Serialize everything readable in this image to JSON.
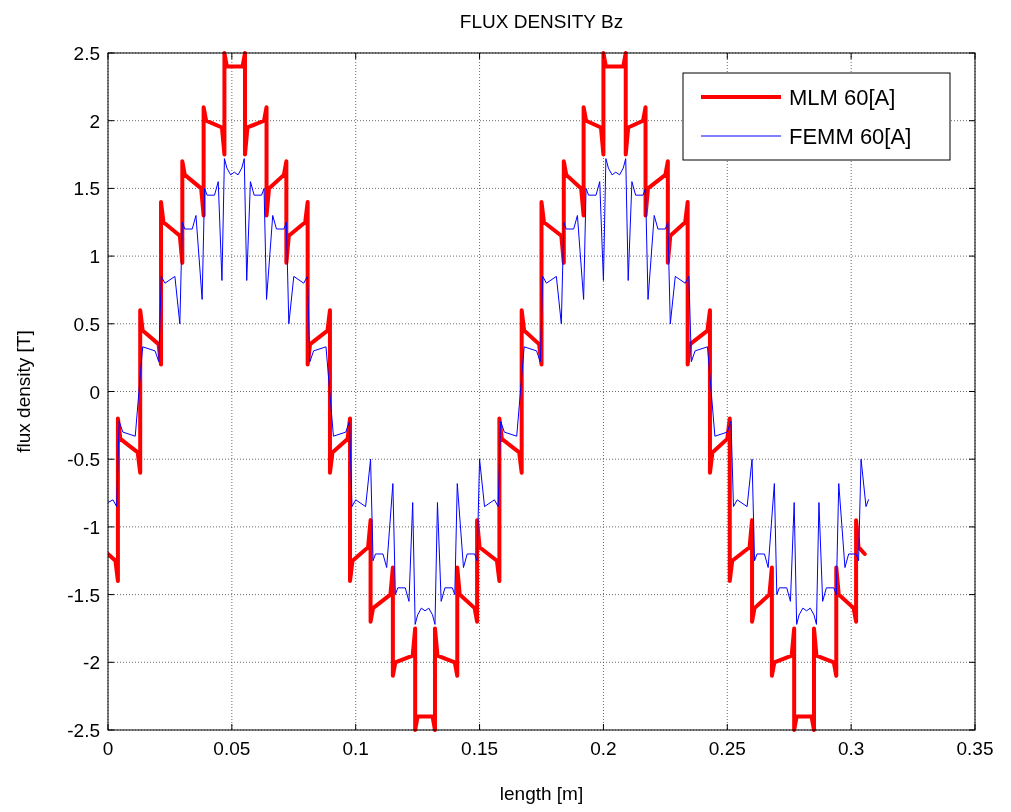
{
  "chart_data": {
    "type": "line",
    "title": "FLUX DENSITY Bz",
    "xlabel": "length [m]",
    "ylabel": "flux density [T]",
    "xlim": [
      0,
      0.35
    ],
    "xticks": [
      0,
      0.05,
      0.1,
      0.15,
      0.2,
      0.25,
      0.3,
      0.35
    ],
    "ylim": [
      -2.5,
      2.5
    ],
    "yticks": [
      -2.5,
      -2,
      -1.5,
      -1,
      -0.5,
      0,
      0.5,
      1,
      1.5,
      2,
      2.5
    ],
    "grid": true,
    "legend": "top right",
    "marker": "none",
    "line_style": "solid",
    "series": [
      {
        "name": "MLM 60[A]",
        "color": "#ff0000",
        "x": [
          0,
          0.003,
          0.004,
          0.004,
          0.005,
          0.012,
          0.013,
          0.013,
          0.014,
          0.0204,
          0.0214,
          0.0214,
          0.0224,
          0.029,
          0.03,
          0.03,
          0.031,
          0.0376,
          0.0386,
          0.0386,
          0.0396,
          0.046,
          0.047,
          0.047,
          0.048,
          0.0543,
          0.0553,
          0.0553,
          0.0563,
          0.063,
          0.064,
          0.064,
          0.065,
          0.071,
          0.072,
          0.072,
          0.073,
          0.0796,
          0.0806,
          0.0806,
          0.0816,
          0.0886,
          0.0896,
          0.0896,
          0.0906,
          0.0967,
          0.0977,
          0.0977,
          0.0987,
          0.105,
          0.106,
          0.106,
          0.107,
          0.114,
          0.115,
          0.115,
          0.116,
          0.123,
          0.124,
          0.124,
          0.125,
          0.131,
          0.132,
          0.132,
          0.133,
          0.14,
          0.141,
          0.141,
          0.142,
          0.148,
          0.149,
          0.149,
          0.15,
          0.157,
          0.158,
          0.158,
          0.159,
          0.166,
          0.167,
          0.167,
          0.168,
          0.174,
          0.175,
          0.175,
          0.176,
          0.183,
          0.184,
          0.184,
          0.185,
          0.191,
          0.192,
          0.192,
          0.193,
          0.199,
          0.2,
          0.2,
          0.201,
          0.208,
          0.209,
          0.209,
          0.21,
          0.216,
          0.217,
          0.217,
          0.218,
          0.225,
          0.226,
          0.226,
          0.227,
          0.233,
          0.234,
          0.234,
          0.235,
          0.242,
          0.243,
          0.243,
          0.244,
          0.25,
          0.251,
          0.251,
          0.252,
          0.259,
          0.26,
          0.26,
          0.261,
          0.267,
          0.268,
          0.268,
          0.269,
          0.276,
          0.277,
          0.277,
          0.278,
          0.284,
          0.285,
          0.285,
          0.286,
          0.293,
          0.294,
          0.294,
          0.295,
          0.301,
          0.302,
          0.302,
          0.303,
          0.3055
        ],
        "values": [
          -1.2,
          -1.25,
          -1.4,
          -0.2,
          -0.35,
          -0.45,
          -0.6,
          0.6,
          0.45,
          0.35,
          0.2,
          1.4,
          1.25,
          1.15,
          0.95,
          1.7,
          1.6,
          1.5,
          1.3,
          2.1,
          2.0,
          1.95,
          1.75,
          2.5,
          2.4,
          2.4,
          2.5,
          1.75,
          1.95,
          2.0,
          2.1,
          1.3,
          1.5,
          1.6,
          1.7,
          0.95,
          1.15,
          1.25,
          1.4,
          0.2,
          0.35,
          0.45,
          0.6,
          -0.6,
          -0.45,
          -0.35,
          -0.2,
          -1.4,
          -1.25,
          -1.15,
          -0.95,
          -1.7,
          -1.6,
          -1.5,
          -1.3,
          -2.1,
          -2.0,
          -1.95,
          -1.75,
          -2.5,
          -2.4,
          -2.4,
          -2.5,
          -1.75,
          -1.95,
          -2.0,
          -2.1,
          -1.3,
          -1.5,
          -1.6,
          -1.7,
          -0.95,
          -1.15,
          -1.25,
          -1.4,
          -0.2,
          -0.35,
          -0.45,
          -0.6,
          0.6,
          0.45,
          0.35,
          0.2,
          1.4,
          1.25,
          1.15,
          0.95,
          1.7,
          1.6,
          1.5,
          1.3,
          2.1,
          2.0,
          1.95,
          1.75,
          2.5,
          2.4,
          2.4,
          2.5,
          1.75,
          1.95,
          2.0,
          2.1,
          1.3,
          1.5,
          1.6,
          1.7,
          0.95,
          1.15,
          1.25,
          1.4,
          0.2,
          0.35,
          0.45,
          0.6,
          -0.6,
          -0.45,
          -0.35,
          -0.2,
          -1.4,
          -1.25,
          -1.15,
          -0.95,
          -1.7,
          -1.6,
          -1.5,
          -1.3,
          -2.1,
          -2.0,
          -1.95,
          -1.75,
          -2.5,
          -2.4,
          -2.4,
          -2.5,
          -1.75,
          -1.95,
          -2.0,
          -2.1,
          -1.3,
          -1.5,
          -1.6,
          -1.7,
          -0.95,
          -1.15,
          -1.2
        ]
      },
      {
        "name": "FEMM 60[A]",
        "color": "#0000ff",
        "x": [
          0,
          0.002,
          0.0035,
          0.0045,
          0.006,
          0.011,
          0.0125,
          0.014,
          0.019,
          0.0205,
          0.0215,
          0.023,
          0.027,
          0.029,
          0.03,
          0.031,
          0.034,
          0.0355,
          0.038,
          0.039,
          0.04,
          0.043,
          0.0445,
          0.046,
          0.047,
          0.048,
          0.0495,
          0.051,
          0.0525,
          0.054,
          0.055,
          0.056,
          0.0575,
          0.059,
          0.062,
          0.063,
          0.064,
          0.0665,
          0.068,
          0.071,
          0.072,
          0.073,
          0.075,
          0.079,
          0.0805,
          0.0815,
          0.083,
          0.088,
          0.0895,
          0.091,
          0.096,
          0.0975,
          0.0985,
          0.1,
          0.104,
          0.106,
          0.107,
          0.108,
          0.111,
          0.1125,
          0.115,
          0.116,
          0.117,
          0.12,
          0.1215,
          0.123,
          0.124,
          0.125,
          0.1265,
          0.128,
          0.1295,
          0.131,
          0.132,
          0.133,
          0.1345,
          0.136,
          0.139,
          0.14,
          0.141,
          0.1435,
          0.145,
          0.148,
          0.149,
          0.15,
          0.152,
          0.156,
          0.1575,
          0.1585,
          0.16,
          0.165,
          0.1665,
          0.168,
          0.173,
          0.1745,
          0.1755,
          0.177,
          0.181,
          0.183,
          0.184,
          0.185,
          0.188,
          0.1895,
          0.192,
          0.193,
          0.194,
          0.197,
          0.1985,
          0.2,
          0.201,
          0.202,
          0.2035,
          0.205,
          0.2065,
          0.208,
          0.209,
          0.21,
          0.2115,
          0.213,
          0.216,
          0.217,
          0.218,
          0.2205,
          0.222,
          0.225,
          0.226,
          0.227,
          0.229,
          0.233,
          0.2345,
          0.2355,
          0.237,
          0.242,
          0.2435,
          0.245,
          0.25,
          0.2515,
          0.2525,
          0.254,
          0.258,
          0.26,
          0.261,
          0.262,
          0.265,
          0.2665,
          0.269,
          0.27,
          0.271,
          0.274,
          0.2755,
          0.277,
          0.278,
          0.279,
          0.2805,
          0.282,
          0.2835,
          0.285,
          0.286,
          0.287,
          0.2885,
          0.29,
          0.293,
          0.294,
          0.295,
          0.2975,
          0.299,
          0.302,
          0.303,
          0.304,
          0.306,
          0.307
        ],
        "values": [
          -0.82,
          -0.8,
          -0.85,
          -0.22,
          -0.3,
          -0.33,
          0.0,
          0.33,
          0.3,
          0.22,
          0.85,
          0.8,
          0.85,
          0.5,
          1.25,
          1.2,
          1.2,
          1.3,
          0.68,
          1.5,
          1.45,
          1.45,
          1.55,
          0.82,
          1.72,
          1.65,
          1.6,
          1.62,
          1.6,
          1.65,
          1.72,
          0.82,
          1.55,
          1.45,
          1.45,
          1.5,
          0.68,
          1.3,
          1.2,
          1.2,
          1.25,
          0.5,
          0.85,
          0.8,
          0.85,
          0.22,
          0.3,
          0.33,
          0.0,
          -0.33,
          -0.3,
          -0.22,
          -0.85,
          -0.8,
          -0.85,
          -0.5,
          -1.25,
          -1.2,
          -1.2,
          -1.3,
          -0.68,
          -1.5,
          -1.45,
          -1.45,
          -1.55,
          -0.82,
          -1.72,
          -1.65,
          -1.6,
          -1.62,
          -1.6,
          -1.65,
          -1.72,
          -0.82,
          -1.55,
          -1.45,
          -1.45,
          -1.5,
          -0.68,
          -1.3,
          -1.2,
          -1.2,
          -1.25,
          -0.5,
          -0.85,
          -0.8,
          -0.85,
          -0.22,
          -0.3,
          -0.33,
          0.0,
          0.33,
          0.3,
          0.22,
          0.85,
          0.8,
          0.85,
          0.5,
          1.25,
          1.2,
          1.2,
          1.3,
          0.68,
          1.5,
          1.45,
          1.45,
          1.55,
          0.82,
          1.72,
          1.65,
          1.6,
          1.62,
          1.6,
          1.65,
          1.72,
          0.82,
          1.55,
          1.45,
          1.45,
          1.5,
          0.68,
          1.3,
          1.2,
          1.2,
          1.25,
          0.5,
          0.85,
          0.8,
          0.85,
          0.22,
          0.3,
          0.33,
          0.0,
          -0.33,
          -0.3,
          -0.22,
          -0.85,
          -0.8,
          -0.85,
          -0.5,
          -1.25,
          -1.2,
          -1.2,
          -1.3,
          -0.68,
          -1.5,
          -1.45,
          -1.45,
          -1.55,
          -0.82,
          -1.72,
          -1.65,
          -1.6,
          -1.62,
          -1.6,
          -1.65,
          -1.72,
          -0.82,
          -1.55,
          -1.45,
          -1.45,
          -1.5,
          -0.68,
          -1.3,
          -1.2,
          -1.2,
          -1.25,
          -0.5,
          -0.85,
          -0.8
        ]
      }
    ]
  }
}
